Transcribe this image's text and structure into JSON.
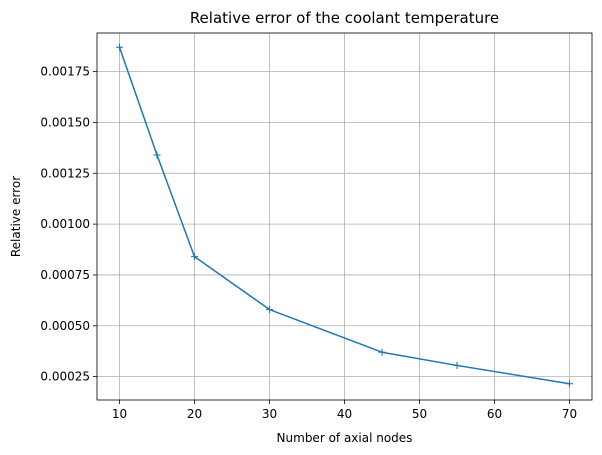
{
  "chart_data": {
    "type": "line",
    "title": "Relative error of the coolant temperature",
    "xlabel": "Number of axial nodes",
    "ylabel": "Relative error",
    "xlim": [
      7.0,
      73.0
    ],
    "ylim": [
      0.000135,
      0.00194
    ],
    "x_ticks": [
      10,
      20,
      30,
      40,
      50,
      60,
      70
    ],
    "x_tick_labels": [
      "10",
      "20",
      "30",
      "40",
      "50",
      "60",
      "70"
    ],
    "y_ticks": [
      0.00025,
      0.0005,
      0.00075,
      0.001,
      0.00125,
      0.0015,
      0.00175
    ],
    "y_tick_labels": [
      "0.00025",
      "0.00050",
      "0.00075",
      "0.00100",
      "0.00125",
      "0.00150",
      "0.00175"
    ],
    "grid": true,
    "series": [
      {
        "color": "#1f77b4",
        "marker": "plus",
        "x": [
          10,
          15,
          20,
          30,
          45,
          55,
          70
        ],
        "y": [
          0.00187,
          0.00134,
          0.00084,
          0.00058,
          0.00037,
          0.000305,
          0.000215
        ]
      }
    ]
  }
}
